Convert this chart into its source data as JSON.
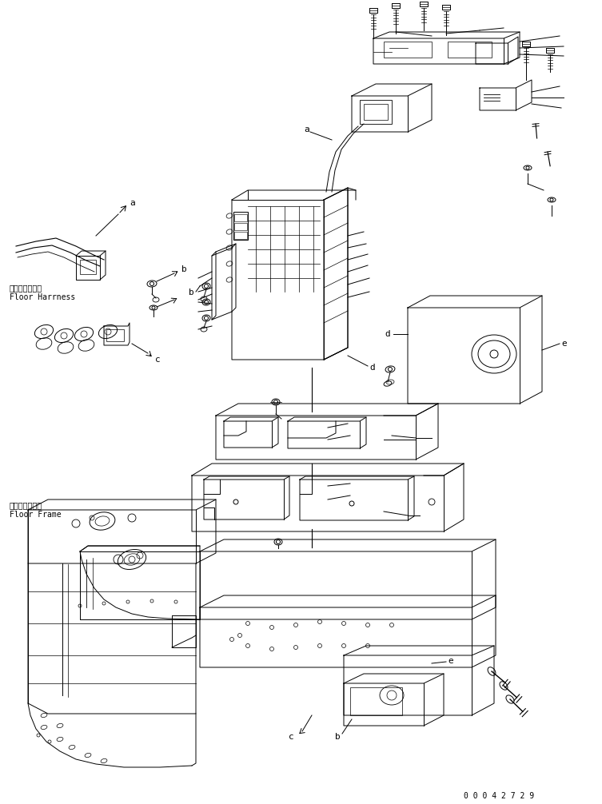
{
  "figure_width": 7.53,
  "figure_height": 10.06,
  "dpi": 100,
  "background_color": "#ffffff",
  "line_color": "#000000",
  "line_width": 0.7,
  "part_number": "0 0 0 4 2 7 2 9",
  "labels": {
    "floor_harness_jp": "フロアハーネス",
    "floor_harness_en": "Floor Harrness",
    "floor_frame_jp": "フロアフレーム",
    "floor_frame_en": "Floor Frame"
  }
}
